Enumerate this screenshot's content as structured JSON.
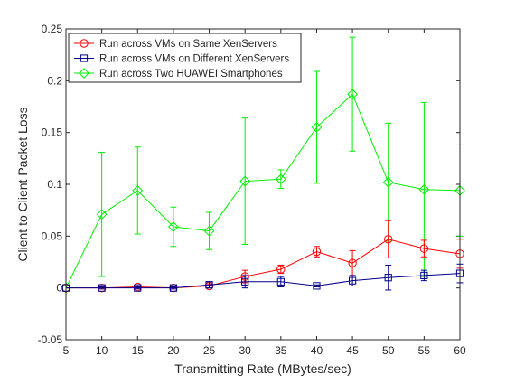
{
  "chart_data": {
    "type": "line",
    "title": "",
    "xlabel": "Transmitting Rate (MBytes/sec)",
    "ylabel": "Client to Client Packet Loss",
    "xlim": [
      5,
      60
    ],
    "ylim": [
      -0.05,
      0.25
    ],
    "x_ticks": [
      "5",
      "10",
      "15",
      "20",
      "25",
      "30",
      "35",
      "40",
      "45",
      "50",
      "55",
      "60"
    ],
    "y_ticks": [
      "-0.05",
      "0",
      "0.05",
      "0.1",
      "0.15",
      "0.2",
      "0.25"
    ],
    "grid": false,
    "legend_position": "top-left",
    "series": [
      {
        "name": "Run across VMs on Same XenServers",
        "color": "#ff0000",
        "marker": "circle",
        "x": [
          5,
          10,
          15,
          20,
          25,
          30,
          35,
          40,
          45,
          50,
          55,
          60
        ],
        "y": [
          0,
          0,
          0.001,
          0,
          0.002,
          0.011,
          0.018,
          0.035,
          0.024,
          0.047,
          0.038,
          0.033
        ],
        "err": [
          0,
          0.001,
          0.001,
          0.001,
          0.002,
          0.006,
          0.004,
          0.005,
          0.012,
          0.018,
          0.008,
          0.014
        ]
      },
      {
        "name": "Run across VMs on Different XenServers",
        "color": "#00008b",
        "marker": "square",
        "x": [
          5,
          10,
          15,
          20,
          25,
          30,
          35,
          40,
          45,
          50,
          55,
          60
        ],
        "y": [
          0,
          0,
          0,
          0,
          0.003,
          0.006,
          0.006,
          0.002,
          0.007,
          0.01,
          0.012,
          0.014
        ],
        "err": [
          0,
          0.001,
          0.001,
          0.001,
          0.003,
          0.006,
          0.005,
          0.001,
          0.005,
          0.012,
          0.005,
          0.009
        ]
      },
      {
        "name": "Run across Two HUAWEI Smartphones",
        "color": "#00ee00",
        "marker": "diamond",
        "x": [
          5,
          10,
          15,
          20,
          25,
          30,
          35,
          40,
          45,
          50,
          55,
          60
        ],
        "y": [
          0,
          0.071,
          0.094,
          0.059,
          0.055,
          0.103,
          0.105,
          0.155,
          0.187,
          0.102,
          0.095,
          0.094
        ],
        "err": [
          0,
          0.06,
          0.042,
          0.019,
          0.018,
          0.061,
          0.009,
          0.054,
          0.055,
          0.057,
          0.084,
          0.044
        ]
      }
    ]
  }
}
